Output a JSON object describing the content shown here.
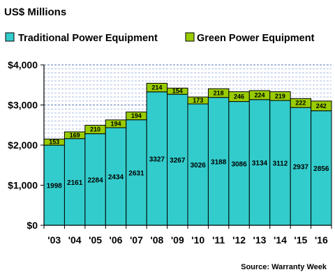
{
  "chart_data": {
    "type": "bar",
    "stacked": true,
    "title": "US$ Millions",
    "categories": [
      "'03",
      "'04",
      "'05",
      "'06",
      "'07",
      "'08",
      "'09",
      "'10",
      "'11",
      "'12",
      "'13",
      "'14",
      "'15",
      "'16"
    ],
    "series": [
      {
        "name": "Traditional Power Equipment",
        "color": "#33CCCC",
        "values": [
          1998,
          2161,
          2284,
          2434,
          2631,
          3327,
          3267,
          3026,
          3188,
          3086,
          3134,
          3112,
          2937,
          2856
        ]
      },
      {
        "name": "Green Power Equipment",
        "color": "#99CC00",
        "values": [
          153,
          169,
          210,
          194,
          194,
          214,
          154,
          173,
          218,
          246,
          224,
          219,
          222,
          242
        ]
      }
    ],
    "yticks": [
      "$0",
      "$1,000",
      "$2,000",
      "$3,000",
      "$4,000"
    ],
    "ylim": [
      0,
      4000
    ],
    "grid": true,
    "legend_position": "top",
    "source": "Source: Warranty Week"
  }
}
